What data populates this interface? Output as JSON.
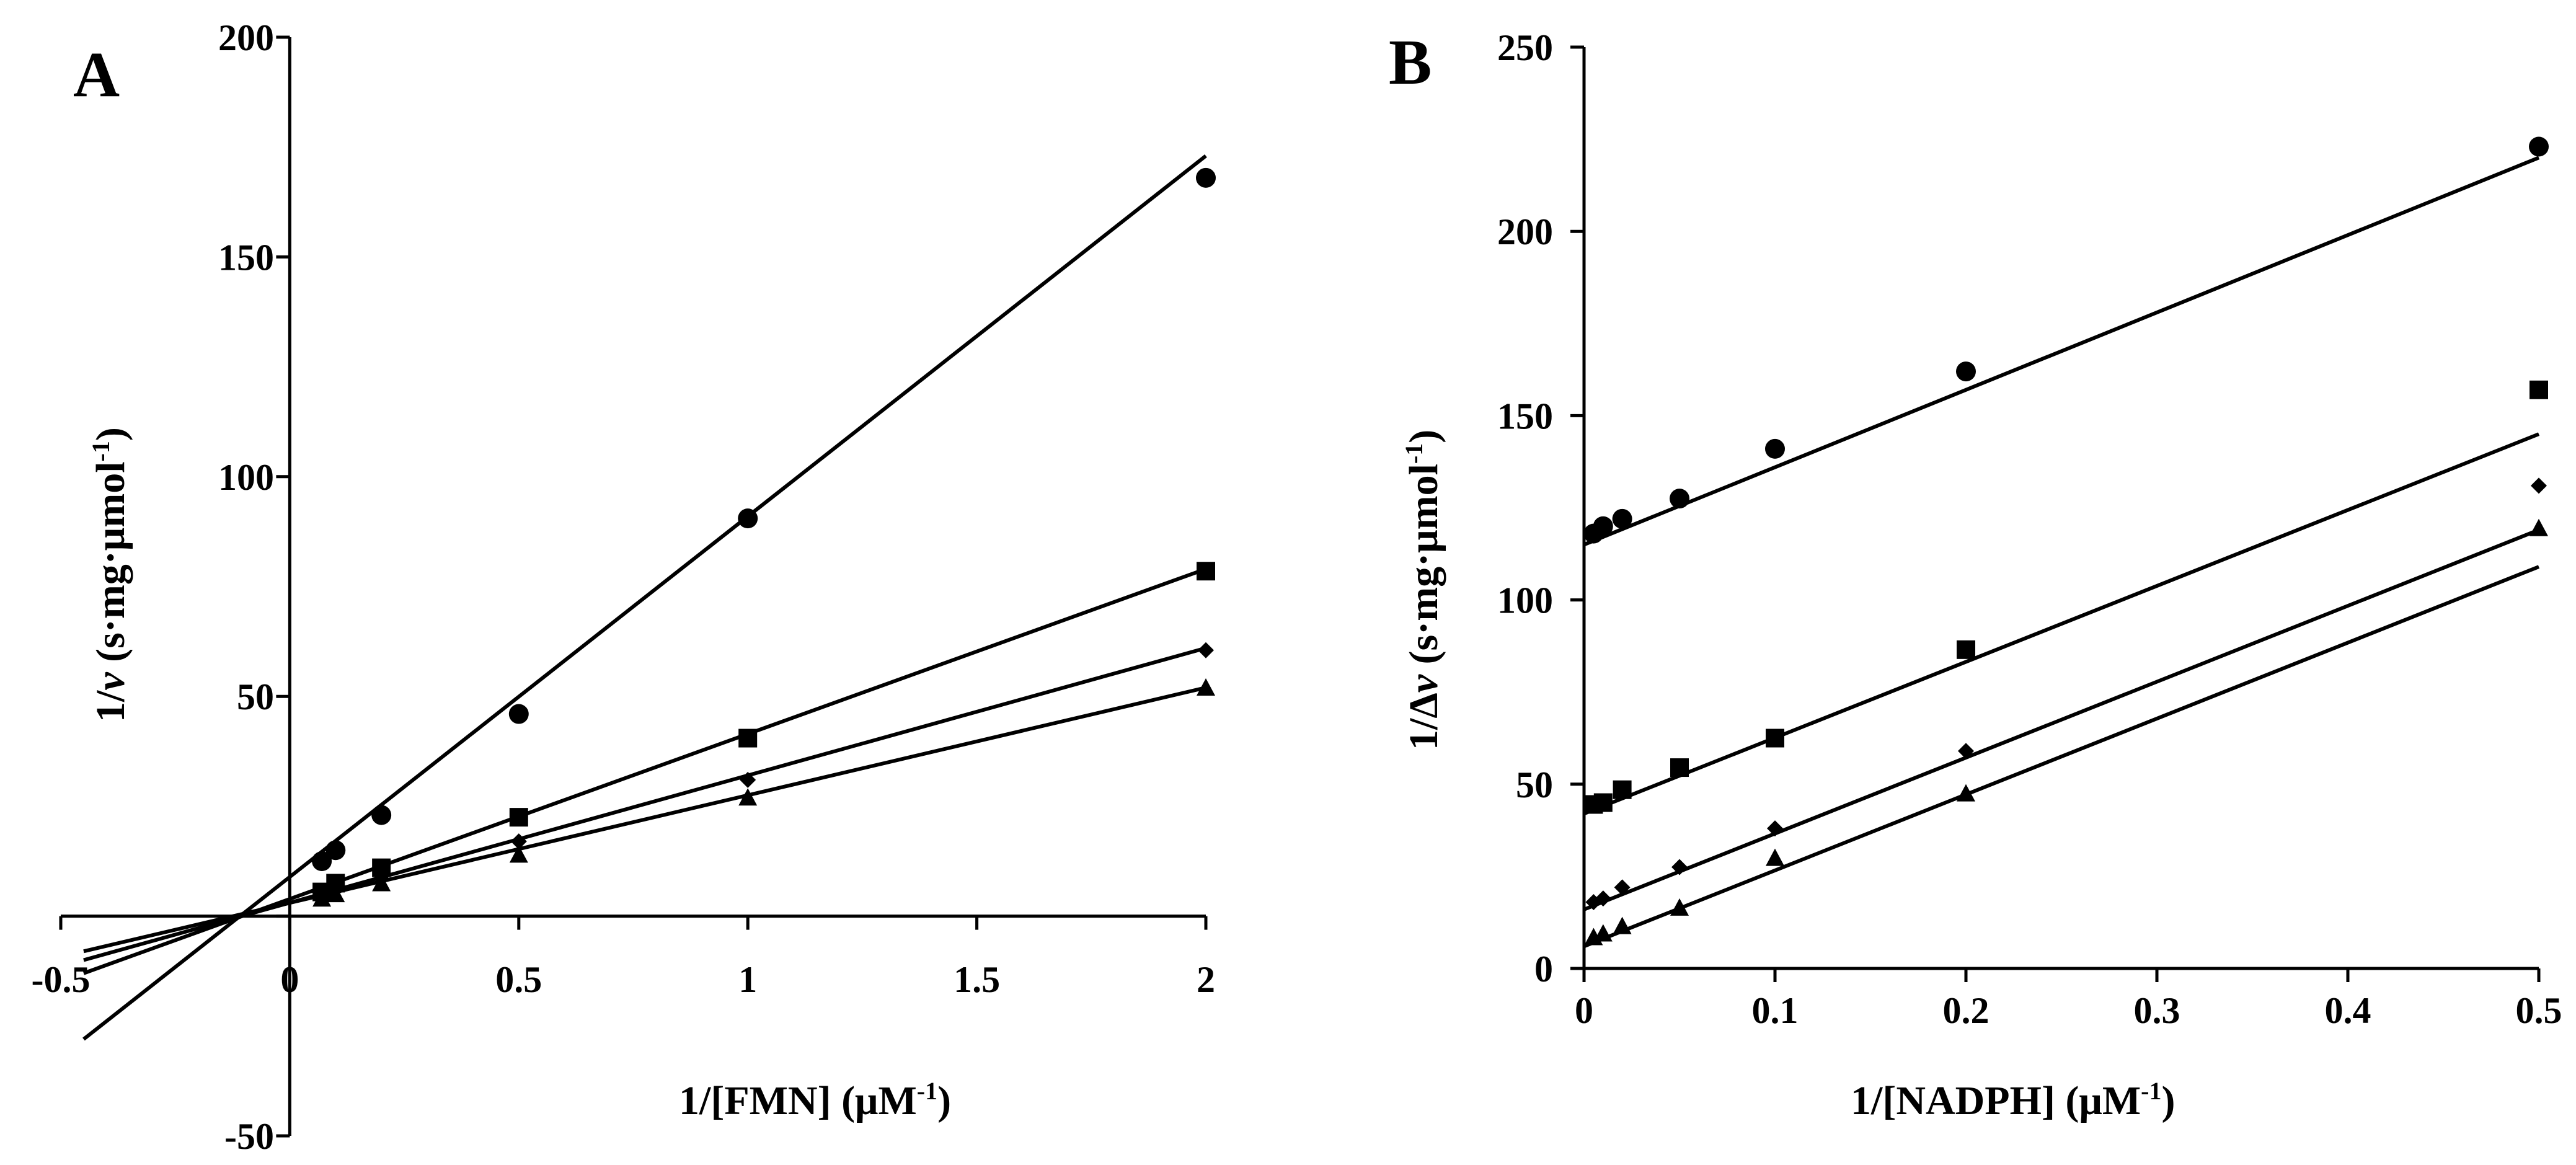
{
  "chart_data": [
    {
      "panel": "A",
      "type": "scatter",
      "xlabel_main": "1/[FMN] (",
      "xlabel_unit": "μM",
      "xlabel_exp": "-1",
      "xlabel_close": ")",
      "ylabel_main": "1/",
      "ylabel_var": "v",
      "ylabel_unit": " (s·mg·μmol",
      "ylabel_exp": "-1",
      "ylabel_close": ")",
      "xlim": [
        -0.5,
        2
      ],
      "ylim": [
        -50,
        200
      ],
      "xticks": [
        -0.5,
        0,
        0.5,
        1,
        1.5,
        2
      ],
      "xtick_labels": [
        "-0.5",
        "0",
        "0.5",
        "1",
        "1.5",
        "2"
      ],
      "yticks": [
        -50,
        50,
        100,
        150,
        200
      ],
      "ytick_labels": [
        "-50",
        "50",
        "100",
        "150",
        "200"
      ],
      "series": [
        {
          "marker": "circle",
          "x": [
            0.07,
            0.1,
            0.2,
            0.5,
            1,
            2
          ],
          "y": [
            12.5,
            15,
            23,
            46,
            90.5,
            168
          ],
          "fit": [
            [
              -0.45,
              -28
            ],
            [
              2,
              173
            ]
          ]
        },
        {
          "marker": "square",
          "x": [
            0.07,
            0.1,
            0.2,
            0.5,
            1,
            2
          ],
          "y": [
            5.5,
            7.5,
            11,
            22.5,
            40.5,
            78.5
          ],
          "fit": [
            [
              -0.45,
              -13
            ],
            [
              2,
              79
            ]
          ]
        },
        {
          "marker": "diamond",
          "x": [
            0.07,
            0.1,
            0.2,
            0.5,
            1,
            2
          ],
          "y": [
            4.5,
            6,
            8.5,
            17,
            31,
            60.5
          ],
          "fit": [
            [
              -0.45,
              -10
            ],
            [
              2,
              61
            ]
          ]
        },
        {
          "marker": "triangle",
          "x": [
            0.07,
            0.1,
            0.2,
            0.5,
            1,
            2
          ],
          "y": [
            4,
            5,
            7.5,
            14,
            27,
            52
          ],
          "fit": [
            [
              -0.45,
              -8
            ],
            [
              2,
              52
            ]
          ]
        }
      ]
    },
    {
      "panel": "B",
      "type": "scatter",
      "xlabel_main": "1/[NADPH] (",
      "xlabel_unit": "μM",
      "xlabel_exp": "-1",
      "xlabel_close": ")",
      "ylabel_main": "1/Δ",
      "ylabel_var": "v",
      "ylabel_unit": " (s·mg·μmol",
      "ylabel_exp": "-1",
      "ylabel_close": ")",
      "xlim": [
        0,
        0.5
      ],
      "ylim": [
        0,
        250
      ],
      "xticks": [
        0,
        0.1,
        0.2,
        0.3,
        0.4,
        0.5
      ],
      "xtick_labels": [
        "0",
        "0.1",
        "0.2",
        "0.3",
        "0.4",
        "0.5"
      ],
      "yticks": [
        0,
        50,
        100,
        150,
        200,
        250
      ],
      "ytick_labels": [
        "0",
        "50",
        "100",
        "150",
        "200",
        "250"
      ],
      "series": [
        {
          "marker": "circle",
          "x": [
            0.005,
            0.01,
            0.02,
            0.05,
            0.1,
            0.2,
            0.5
          ],
          "y": [
            118,
            120,
            122,
            127.5,
            141,
            162,
            223
          ],
          "fit": [
            [
              0,
              115
            ],
            [
              0.5,
              220
            ]
          ]
        },
        {
          "marker": "square",
          "x": [
            0.005,
            0.01,
            0.02,
            0.05,
            0.1,
            0.2,
            0.5
          ],
          "y": [
            44.5,
            45,
            48.5,
            54.5,
            62.5,
            86.5,
            157
          ],
          "fit": [
            [
              0,
              42
            ],
            [
              0.5,
              145
            ]
          ]
        },
        {
          "marker": "diamond",
          "x": [
            0.005,
            0.01,
            0.02,
            0.05,
            0.1,
            0.2,
            0.5
          ],
          "y": [
            18,
            19,
            22,
            27.5,
            38,
            59,
            131
          ],
          "fit": [
            [
              0,
              16
            ],
            [
              0.5,
              119
            ]
          ]
        },
        {
          "marker": "triangle",
          "x": [
            0.005,
            0.01,
            0.02,
            0.05,
            0.1,
            0.2,
            0.5
          ],
          "y": [
            8.5,
            9.5,
            11.5,
            16.5,
            30,
            47.5,
            119.5
          ],
          "fit": [
            [
              0,
              6
            ],
            [
              0.5,
              109
            ]
          ]
        }
      ]
    }
  ]
}
